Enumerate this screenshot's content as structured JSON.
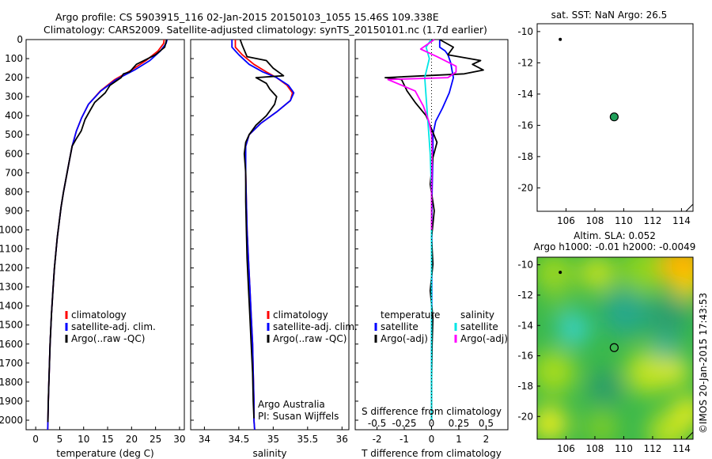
{
  "header": {
    "line1": "Argo profile: CS 5903915_116 02-Jan-2015 20150103_1055 15.46S 109.338E",
    "line2": "Climatology: CARS2009. Satellite-adjusted climatology: synTS_20150101.nc (1.7d earlier)"
  },
  "watermark": "©IMOS 20-Jan-2015 17:43:53",
  "colors": {
    "climatology": "#ff0000",
    "satellite": "#0000ff",
    "argo": "#000000",
    "sat_salinity": "#00e5e5",
    "argo_salinity": "#ff00ff",
    "float_marker": "#1fa05a"
  },
  "chart_data": [
    {
      "type": "line",
      "title": "",
      "xlabel": "temperature (deg C)",
      "ylabel": "",
      "xlim": [
        -2,
        31
      ],
      "ylim": [
        2050,
        0
      ],
      "xticks": [
        0,
        5,
        10,
        15,
        20,
        25,
        30
      ],
      "yticks": [
        0,
        100,
        200,
        300,
        400,
        500,
        600,
        700,
        800,
        900,
        1000,
        1100,
        1200,
        1300,
        1400,
        1500,
        1600,
        1700,
        1800,
        1900,
        2000
      ],
      "legend": [
        "climatology",
        "satellite-adj. clim.",
        "Argo(..raw -QC)"
      ],
      "series": [
        {
          "name": "climatology",
          "color": "#ff0000",
          "x": [
            26.8,
            26.7,
            25.5,
            23,
            20,
            16.5,
            13.5,
            11,
            9.6,
            8.5,
            7.6,
            7,
            6.4,
            5.8,
            5.3,
            4.9,
            4.5,
            4.2,
            3.9,
            3.7,
            3.5,
            3.3,
            3.15,
            3.0,
            2.9,
            2.8,
            2.7,
            2.62,
            2.55,
            2.5
          ],
          "y": [
            0,
            20,
            60,
            110,
            160,
            210,
            270,
            340,
            410,
            480,
            560,
            640,
            720,
            800,
            880,
            960,
            1040,
            1120,
            1200,
            1280,
            1360,
            1440,
            1520,
            1600,
            1680,
            1760,
            1840,
            1920,
            2000,
            2050
          ]
        },
        {
          "name": "satellite-adj. clim.",
          "color": "#0000ff",
          "x": [
            27.4,
            27.2,
            26,
            23.8,
            20.6,
            16.8,
            13.6,
            11,
            9.6,
            8.5,
            7.6,
            7,
            6.4,
            5.8,
            5.3,
            4.9,
            4.5,
            4.2,
            3.9,
            3.7,
            3.5,
            3.3,
            3.15,
            3.0,
            2.9,
            2.8,
            2.7,
            2.62,
            2.55,
            2.5
          ],
          "y": [
            0,
            20,
            60,
            110,
            160,
            210,
            270,
            340,
            410,
            480,
            560,
            640,
            720,
            800,
            880,
            960,
            1040,
            1120,
            1200,
            1280,
            1360,
            1440,
            1520,
            1600,
            1680,
            1760,
            1840,
            1920,
            2000,
            2050
          ]
        },
        {
          "name": "Argo(..raw -QC)",
          "color": "#000000",
          "x": [
            27.3,
            27.2,
            26.9,
            25,
            21,
            19.6,
            18.3,
            17.8,
            15.5,
            14.5,
            12.3,
            11.4,
            10.3,
            9.5,
            8.5,
            7.6,
            7,
            6.4,
            5.8,
            5.3,
            4.9,
            4.5,
            4.2,
            3.9,
            3.7,
            3.5,
            3.3,
            3.15,
            3.0,
            2.9,
            2.8,
            2.7,
            2.6,
            2.55
          ],
          "y": [
            0,
            10,
            40,
            80,
            130,
            170,
            180,
            200,
            240,
            280,
            330,
            370,
            420,
            480,
            520,
            560,
            640,
            720,
            800,
            880,
            960,
            1040,
            1120,
            1200,
            1280,
            1360,
            1440,
            1520,
            1600,
            1680,
            1760,
            1840,
            1920,
            2010
          ]
        }
      ]
    },
    {
      "type": "line",
      "title": "",
      "xlabel": "salinity",
      "xlim": [
        33.8,
        36.1
      ],
      "ylim": [
        2050,
        0
      ],
      "xticks": [
        34,
        34.5,
        35,
        35.5,
        36
      ],
      "legend": [
        "climatology",
        "satellite-adj. clim.",
        "Argo(..raw -QC)"
      ],
      "annotations": [
        "Argo Australia",
        "PI: Susan Wijffels"
      ],
      "series": [
        {
          "name": "climatology",
          "color": "#ff0000",
          "x": [
            34.45,
            34.45,
            34.55,
            34.72,
            34.9,
            35.05,
            35.2,
            35.28,
            35.25,
            35.05,
            34.82,
            34.65,
            34.6,
            34.6,
            34.61,
            34.62,
            34.64,
            34.66,
            34.68,
            34.7,
            34.71,
            34.72,
            34.72,
            34.73
          ],
          "y": [
            0,
            40,
            80,
            130,
            170,
            200,
            240,
            280,
            320,
            380,
            440,
            500,
            560,
            700,
            850,
            1000,
            1150,
            1300,
            1450,
            1600,
            1750,
            1900,
            2000,
            2050
          ]
        },
        {
          "name": "satellite-adj. clim.",
          "color": "#0000ff",
          "x": [
            34.4,
            34.4,
            34.5,
            34.65,
            34.85,
            35.05,
            35.22,
            35.3,
            35.25,
            35.05,
            34.82,
            34.65,
            34.6,
            34.6,
            34.61,
            34.62,
            34.64,
            34.66,
            34.68,
            34.7,
            34.71,
            34.72,
            34.72,
            34.73
          ],
          "y": [
            0,
            40,
            80,
            130,
            170,
            200,
            240,
            280,
            320,
            380,
            440,
            500,
            560,
            700,
            850,
            1000,
            1150,
            1300,
            1450,
            1600,
            1750,
            1900,
            2000,
            2050
          ]
        },
        {
          "name": "Argo(..raw -QC)",
          "color": "#000000",
          "x": [
            34.52,
            34.55,
            34.62,
            34.9,
            35,
            35.15,
            34.75,
            34.9,
            34.95,
            35.05,
            35.02,
            34.9,
            34.75,
            34.65,
            34.6,
            34.58,
            34.6,
            34.6,
            34.61,
            34.62,
            34.64,
            34.66,
            34.68,
            34.7,
            34.71,
            34.72
          ],
          "y": [
            0,
            30,
            90,
            110,
            150,
            190,
            200,
            230,
            260,
            300,
            340,
            400,
            450,
            500,
            540,
            600,
            700,
            850,
            1000,
            1150,
            1300,
            1450,
            1600,
            1750,
            1900,
            1990
          ]
        }
      ]
    },
    {
      "type": "line",
      "title": "",
      "xlabel": "T difference from climatology",
      "xlabel2": "S difference from climatology",
      "xlim": [
        -2.8,
        2.8
      ],
      "ylim": [
        2050,
        0
      ],
      "xticks": [
        -2,
        -1,
        0,
        1,
        2
      ],
      "xticks_top": [
        -0.5,
        -0.25,
        0,
        0.25,
        0.5
      ],
      "legend_title_left": "temperature",
      "legend_title_right": "salinity",
      "legend": [
        "satellite",
        "Argo(-adj)",
        "satellite",
        "Argo(-adj)"
      ],
      "series": [
        {
          "name": "satellite",
          "color": "#0000ff",
          "x": [
            0.3,
            0.3,
            0.5,
            0.6,
            0.7,
            0.75,
            0.8,
            0.65,
            0.4,
            0.15,
            0.05,
            0.05,
            0.02,
            0.01,
            0.01,
            0.01,
            0.0,
            0.0,
            0.0
          ],
          "y": [
            0,
            40,
            60,
            80,
            120,
            160,
            200,
            280,
            360,
            430,
            500,
            600,
            800,
            1000,
            1200,
            1400,
            1600,
            1800,
            2000
          ]
        },
        {
          "name": "Argo(-adj)",
          "color": "#000000",
          "x": [
            0.3,
            0.8,
            0.6,
            1.8,
            1.5,
            1.9,
            1.2,
            -1.7,
            -1.1,
            -0.9,
            -0.6,
            -0.2,
            0.0,
            0.2,
            0.05,
            -0.05,
            0.1,
            0.0,
            0.05,
            -0.05,
            0.05,
            0.02,
            0.0,
            0.0
          ],
          "y": [
            0,
            40,
            80,
            110,
            130,
            160,
            180,
            200,
            210,
            270,
            330,
            400,
            470,
            540,
            620,
            760,
            900,
            1040,
            1180,
            1320,
            1460,
            1600,
            1800,
            2000
          ]
        },
        {
          "name": "satellite",
          "color": "#00e5e5",
          "x": [
            -0.02,
            -0.2,
            -0.08,
            -0.25,
            -0.2,
            -0.15,
            -0.1,
            -0.05,
            0.0,
            0.0,
            0.0
          ],
          "y": [
            0,
            40,
            100,
            200,
            300,
            400,
            500,
            600,
            800,
            1200,
            2000
          ]
        },
        {
          "name": "Argo(-adj)",
          "color": "#ff00ff",
          "x": [
            0.1,
            -0.4,
            0.2,
            0.9,
            0.9,
            0.6,
            -1.6,
            -0.6,
            -0.3,
            -0.1,
            0.0,
            0.02,
            0.0,
            0.0
          ],
          "y": [
            0,
            50,
            90,
            140,
            170,
            200,
            210,
            270,
            350,
            430,
            500,
            600,
            800,
            1000
          ]
        }
      ]
    },
    {
      "type": "scatter",
      "title": "sat. SST: NaN Argo: 26.5",
      "xlim": [
        104,
        114.8
      ],
      "ylim": [
        -21.5,
        -9.5
      ],
      "xticks": [
        106,
        108,
        110,
        112,
        114
      ],
      "yticks": [
        -10,
        -12,
        -14,
        -16,
        -18,
        -20
      ],
      "points": [
        {
          "x": 105.6,
          "y": -10.5,
          "kind": "small"
        },
        {
          "x": 109.338,
          "y": -15.46,
          "kind": "float"
        }
      ]
    },
    {
      "type": "heatmap",
      "title": "Altim. SLA: 0.052",
      "subtitle": "Argo h1000: -0.01 h2000: -0.0049",
      "xlim": [
        104,
        114.8
      ],
      "ylim": [
        -21.5,
        -9.5
      ],
      "xticks": [
        106,
        108,
        110,
        112,
        114
      ],
      "yticks": [
        -10,
        -12,
        -14,
        -16,
        -18,
        -20
      ],
      "points": [
        {
          "x": 105.6,
          "y": -10.5,
          "kind": "small"
        },
        {
          "x": 109.338,
          "y": -15.46,
          "kind": "float"
        }
      ]
    }
  ]
}
